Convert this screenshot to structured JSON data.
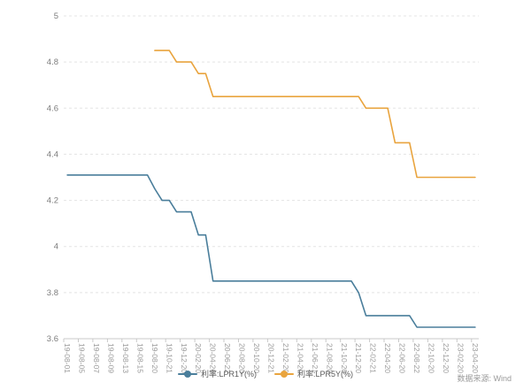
{
  "source_note": "数据来源: Wind",
  "chart_data": {
    "type": "line",
    "title": "",
    "xlabel": "",
    "ylabel": "",
    "legend_position": "bottom",
    "grid": "horizontal-dashed",
    "ylim": [
      3.6,
      5.0
    ],
    "yticks": [
      {
        "v": 5.0,
        "label": "5"
      },
      {
        "v": 4.8,
        "label": "4.8"
      },
      {
        "v": 4.6,
        "label": "4.6"
      },
      {
        "v": 4.4,
        "label": "4.4"
      },
      {
        "v": 4.2,
        "label": "4.2"
      },
      {
        "v": 4.0,
        "label": "4"
      },
      {
        "v": 3.8,
        "label": "3.8"
      },
      {
        "v": 3.6,
        "label": "3.6"
      }
    ],
    "x_label_interval": 2,
    "x": [
      "19-08-01",
      "19-08-02",
      "19-08-05",
      "19-08-06",
      "19-08-07",
      "19-08-08",
      "19-08-09",
      "19-08-12",
      "19-08-13",
      "19-08-14",
      "19-08-15",
      "19-08-16",
      "19-08-20",
      "19-09-20",
      "19-10-21",
      "19-11-20",
      "19-12-20",
      "20-01-20",
      "20-02-20",
      "20-03-20",
      "20-04-20",
      "20-05-20",
      "20-06-22",
      "20-07-20",
      "20-08-20",
      "20-09-21",
      "20-10-20",
      "20-11-20",
      "20-12-21",
      "21-01-20",
      "21-02-20",
      "21-03-22",
      "21-04-20",
      "21-05-20",
      "21-06-21",
      "21-07-20",
      "21-08-20",
      "21-09-22",
      "21-10-20",
      "21-11-22",
      "21-12-20",
      "22-01-20",
      "22-02-21",
      "22-03-21",
      "22-04-20",
      "22-05-20",
      "22-06-20",
      "22-07-20",
      "22-08-22",
      "22-09-20",
      "22-10-20",
      "22-11-21",
      "22-12-20",
      "23-01-20",
      "23-02-20",
      "23-03-20",
      "23-04-20"
    ],
    "series": [
      {
        "name": "利率:LPR1Y(%)",
        "color": "#4a7e9b",
        "values": [
          4.31,
          4.31,
          4.31,
          4.31,
          4.31,
          4.31,
          4.31,
          4.31,
          4.31,
          4.31,
          4.31,
          4.31,
          4.25,
          4.2,
          4.2,
          4.15,
          4.15,
          4.15,
          4.05,
          4.05,
          3.85,
          3.85,
          3.85,
          3.85,
          3.85,
          3.85,
          3.85,
          3.85,
          3.85,
          3.85,
          3.85,
          3.85,
          3.85,
          3.85,
          3.85,
          3.85,
          3.85,
          3.85,
          3.85,
          3.85,
          3.8,
          3.7,
          3.7,
          3.7,
          3.7,
          3.7,
          3.7,
          3.7,
          3.65,
          3.65,
          3.65,
          3.65,
          3.65,
          3.65,
          3.65,
          3.65,
          3.65
        ]
      },
      {
        "name": "利率:LPR5Y(%)",
        "color": "#e9a43e",
        "values": [
          null,
          null,
          null,
          null,
          null,
          null,
          null,
          null,
          null,
          null,
          null,
          null,
          4.85,
          4.85,
          4.85,
          4.8,
          4.8,
          4.8,
          4.75,
          4.75,
          4.65,
          4.65,
          4.65,
          4.65,
          4.65,
          4.65,
          4.65,
          4.65,
          4.65,
          4.65,
          4.65,
          4.65,
          4.65,
          4.65,
          4.65,
          4.65,
          4.65,
          4.65,
          4.65,
          4.65,
          4.65,
          4.6,
          4.6,
          4.6,
          4.6,
          4.45,
          4.45,
          4.45,
          4.3,
          4.3,
          4.3,
          4.3,
          4.3,
          4.3,
          4.3,
          4.3,
          4.3
        ]
      }
    ],
    "axis_colors": {
      "y_label": "#7c7c7c",
      "x_label": "#999999",
      "grid_line": "#e4e4e4",
      "axis_line": "#c9c9c9"
    }
  }
}
